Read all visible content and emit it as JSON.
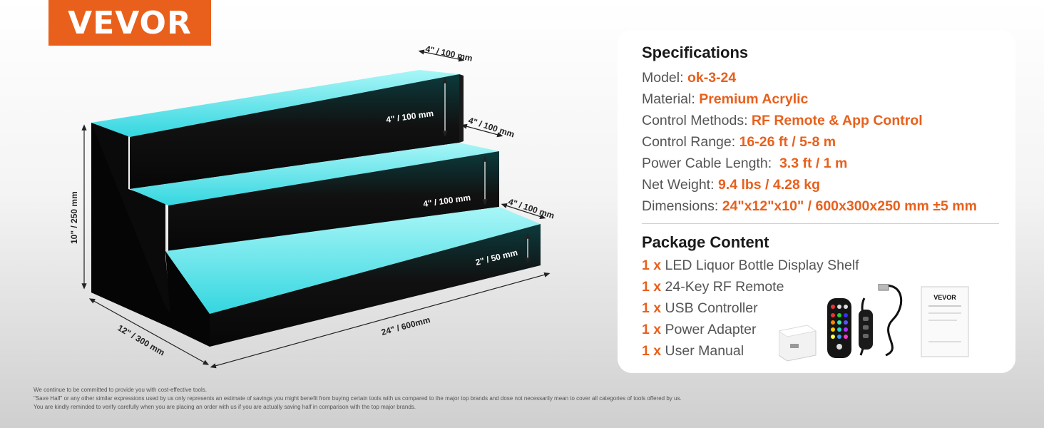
{
  "brand": {
    "logo_text": "VEVOR"
  },
  "dimensions": {
    "step_depth_top": "4\" / 100 mm",
    "step_depth_mid": "4\" / 100 mm",
    "step_depth_low": "4\" / 100 mm",
    "riser_top": "4\" / 100 mm",
    "riser_mid": "4\" / 100 mm",
    "riser_low": "2\" / 50 mm",
    "height": "10\" / 250 mm",
    "depth": "12\" / 300 mm",
    "width": "24\" / 600mm"
  },
  "specifications": {
    "title": "Specifications",
    "rows": [
      {
        "label": "Model: ",
        "value": "ok-3-24"
      },
      {
        "label": "Material: ",
        "value": "Premium Acrylic"
      },
      {
        "label": "Control Methods: ",
        "value": "RF Remote & App Control"
      },
      {
        "label": "Control Range: ",
        "value": "16-26 ft / 5-8 m"
      },
      {
        "label": "Power Cable Length:  ",
        "value": "3.3 ft / 1 m"
      },
      {
        "label": "Net Weight: ",
        "value": "9.4 lbs / 4.28 kg"
      },
      {
        "label": "Dimensions: ",
        "value": "24\"x12\"x10\" / 600x300x250 mm ±5 mm"
      }
    ]
  },
  "package": {
    "title": "Package Content",
    "items": [
      {
        "qty": "1 x",
        "name": "LED Liquor Bottle Display Shelf"
      },
      {
        "qty": "1 x",
        "name": "24-Key RF Remote"
      },
      {
        "qty": "1 x",
        "name": "USB Controller"
      },
      {
        "qty": "1 x",
        "name": "Power Adapter"
      },
      {
        "qty": "1 x",
        "name": "User Manual"
      }
    ],
    "manual_brand": "VEVOR"
  },
  "disclaimer": {
    "line1": "We continue to be committed to provide you with cost-effective tools.",
    "line2": "\"Save Half\" or any other similar expressions used by us only represents an estimate of savings you might benefit from buying certain tools with us compared to the major top brands and dose not necessarily mean to cover all categories of tools offered by us.",
    "line3": "You are kindly reminded to verify carefully when you are placing an order with us if you are actually saving half in comparison with the top major brands."
  },
  "colors": {
    "accent": "#e8601c",
    "glow": "#3fe0e6",
    "shelf": "#111111"
  }
}
